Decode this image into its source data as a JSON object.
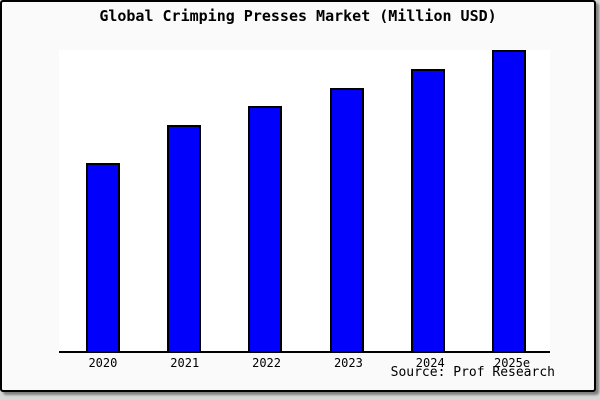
{
  "source": "Source: Prof Research",
  "colors": {
    "bar": "#0000fb",
    "bar_edge": "#000000",
    "axis": "#000000",
    "plot_bg": "#ffffff",
    "panel_bg": "#fafafa",
    "page_bg": "#d6d6d6"
  },
  "chart_data": {
    "type": "bar",
    "title": "Global Crimping Presses Market (Million USD)",
    "categories": [
      "2020",
      "2021",
      "2022",
      "2023",
      "2024",
      "2025e"
    ],
    "values": [
      62.5,
      75.0,
      81.3,
      87.5,
      93.8,
      100.0
    ],
    "value_note": "y-axis is unlabeled; values estimated from bar heights as percent of the tallest bar (2025e = 100)",
    "xlabel": "",
    "ylabel": "",
    "ylim": [
      0,
      100
    ],
    "grid": false,
    "legend": false,
    "bar_color": "#0000fb"
  }
}
